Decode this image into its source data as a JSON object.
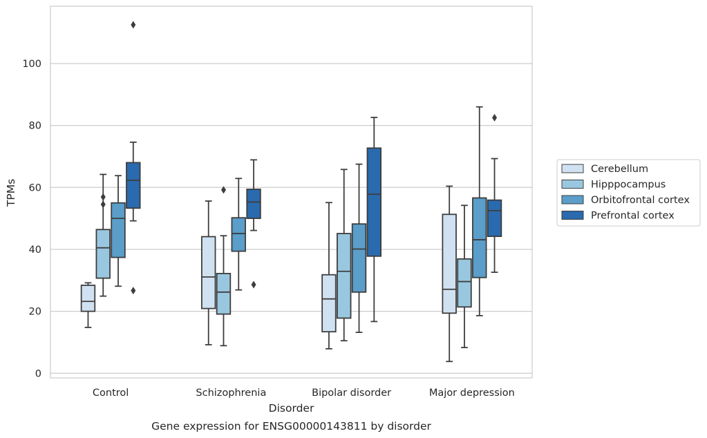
{
  "chart_data": {
    "type": "box",
    "xlabel": "Disorder",
    "ylabel": "TPMs",
    "caption": "Gene expression for ENSG00000143811 by disorder",
    "ylim": [
      -1.5,
      118.5
    ],
    "yticks": [
      0,
      20,
      40,
      60,
      80,
      100
    ],
    "ytick_labels": [
      "0",
      "20",
      "40",
      "60",
      "80",
      "100"
    ],
    "grid": "horizontal",
    "legend_position": "right",
    "categories": [
      "Control",
      "Schizophrenia",
      "Bipolar disorder",
      "Major depression"
    ],
    "series": [
      {
        "name": "Cerebellum",
        "color": "#d0e2f2",
        "boxes": [
          {
            "whislo": 14.8,
            "q1": 20.0,
            "med": 23.2,
            "q3": 28.4,
            "whishi": 29.2,
            "fliers": []
          },
          {
            "whislo": 9.2,
            "q1": 20.9,
            "med": 31.1,
            "q3": 44.1,
            "whishi": 55.6,
            "fliers": []
          },
          {
            "whislo": 7.9,
            "q1": 13.4,
            "med": 24.0,
            "q3": 31.8,
            "whishi": 55.1,
            "fliers": []
          },
          {
            "whislo": 3.8,
            "q1": 19.4,
            "med": 27.1,
            "q3": 51.3,
            "whishi": 60.4,
            "fliers": []
          }
        ]
      },
      {
        "name": "Hipppocampus",
        "color": "#9ac7e0",
        "boxes": [
          {
            "whislo": 24.9,
            "q1": 30.7,
            "med": 40.5,
            "q3": 46.4,
            "whishi": 64.2,
            "fliers": [
              54.5,
              56.9
            ]
          },
          {
            "whislo": 8.9,
            "q1": 19.1,
            "med": 26.2,
            "q3": 32.2,
            "whishi": 44.4,
            "fliers": [
              59.2
            ]
          },
          {
            "whislo": 10.5,
            "q1": 17.8,
            "med": 32.9,
            "q3": 45.1,
            "whishi": 65.8,
            "fliers": []
          },
          {
            "whislo": 8.3,
            "q1": 21.4,
            "med": 29.6,
            "q3": 36.9,
            "whishi": 54.2,
            "fliers": []
          }
        ]
      },
      {
        "name": "Orbitofrontal cortex",
        "color": "#5a9ec9",
        "boxes": [
          {
            "whislo": 28.1,
            "q1": 37.4,
            "med": 50.0,
            "q3": 55.0,
            "whishi": 63.8,
            "fliers": []
          },
          {
            "whislo": 26.9,
            "q1": 39.4,
            "med": 45.1,
            "q3": 50.2,
            "whishi": 62.9,
            "fliers": []
          },
          {
            "whislo": 13.2,
            "q1": 26.2,
            "med": 40.1,
            "q3": 48.2,
            "whishi": 67.5,
            "fliers": []
          },
          {
            "whislo": 18.6,
            "q1": 30.9,
            "med": 43.1,
            "q3": 56.6,
            "whishi": 86.0,
            "fliers": []
          }
        ]
      },
      {
        "name": "Prefrontal cortex",
        "color": "#2a6aae",
        "boxes": [
          {
            "whislo": 49.2,
            "q1": 53.3,
            "med": 62.3,
            "q3": 68.0,
            "whishi": 74.6,
            "fliers": [
              26.7,
              112.5
            ]
          },
          {
            "whislo": 46.1,
            "q1": 50.0,
            "med": 55.3,
            "q3": 59.4,
            "whishi": 68.9,
            "fliers": [
              28.6
            ]
          },
          {
            "whislo": 16.7,
            "q1": 37.8,
            "med": 57.8,
            "q3": 72.7,
            "whishi": 82.6,
            "fliers": []
          },
          {
            "whislo": 32.6,
            "q1": 44.2,
            "med": 52.5,
            "q3": 55.9,
            "whishi": 69.3,
            "fliers": [
              82.5
            ]
          }
        ]
      }
    ]
  }
}
